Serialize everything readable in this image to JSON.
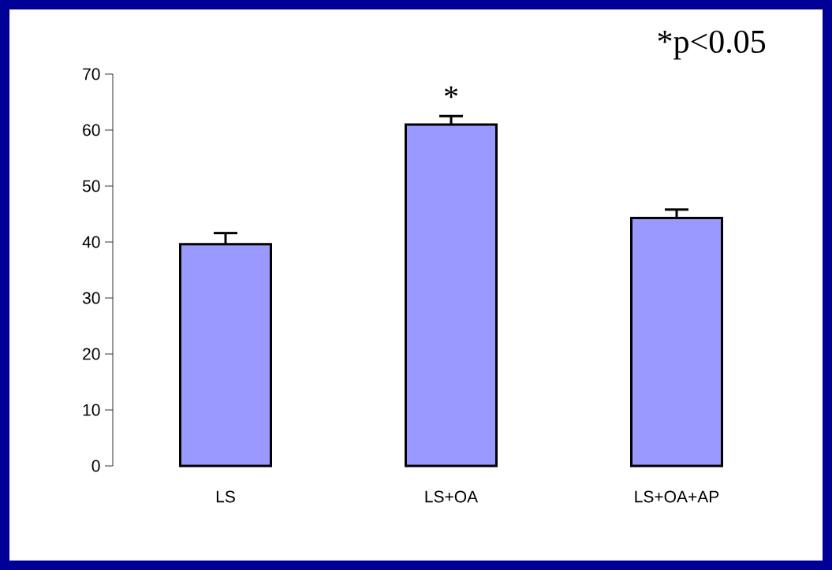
{
  "chart_data": {
    "type": "bar",
    "categories": [
      "LS",
      "LS+OA",
      "LS+OA+AP"
    ],
    "values": [
      39.6,
      61.0,
      44.3
    ],
    "errors": [
      2.0,
      1.5,
      1.5
    ],
    "color": "#9999ff",
    "ylim": [
      0,
      70
    ],
    "yticks": [
      0,
      10,
      20,
      30,
      40,
      50,
      60,
      70
    ],
    "grid": false,
    "annotations": [
      "*",
      "*p<0.05"
    ]
  }
}
